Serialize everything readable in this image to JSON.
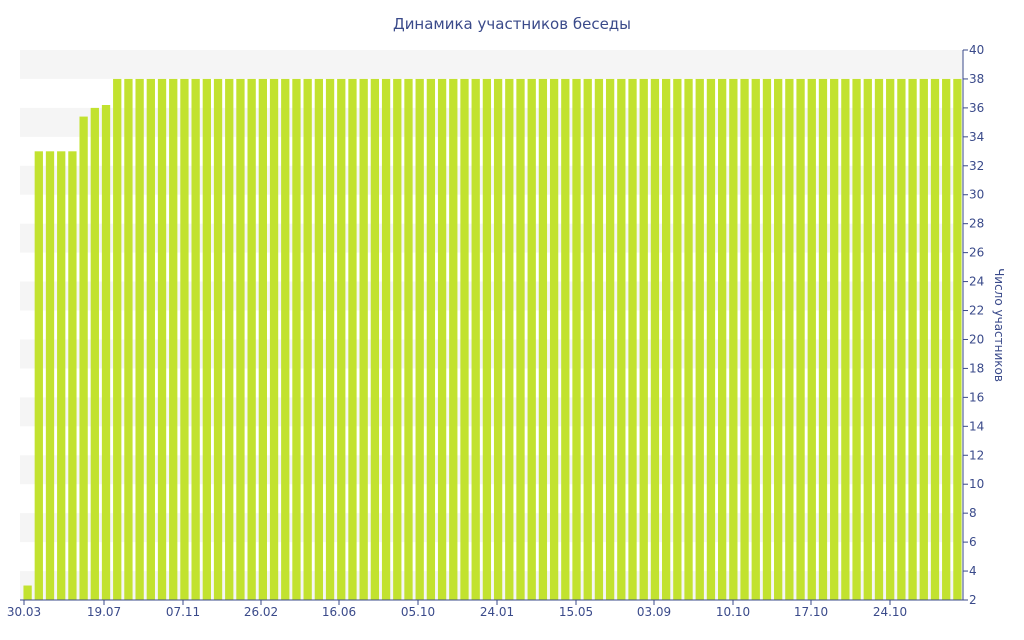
{
  "chart_data": {
    "type": "bar",
    "title": "Динамика участников беседы",
    "xlabel": "",
    "ylabel": "Число участников",
    "ylim": [
      2,
      40
    ],
    "yticks": [
      2,
      4,
      6,
      8,
      10,
      12,
      14,
      16,
      18,
      20,
      22,
      24,
      26,
      28,
      30,
      32,
      34,
      36,
      38,
      40
    ],
    "y_axis_side": "right",
    "grid": "alternating horizontal bands",
    "x_tick_labels": [
      "30.03",
      "19.07",
      "07.11",
      "26.02",
      "16.06",
      "05.10",
      "24.01",
      "15.05",
      "03.09",
      "10.10",
      "17.10",
      "24.10"
    ],
    "bar_color": "#c2e22f",
    "values": [
      3,
      33,
      33,
      33,
      33,
      35.4,
      36,
      36.2,
      38,
      38,
      38,
      38,
      38,
      38,
      38,
      38,
      38,
      38,
      38,
      38,
      38,
      38,
      38,
      38,
      38,
      38,
      38,
      38,
      38,
      38,
      38,
      38,
      38,
      38,
      38,
      38,
      38,
      38,
      38,
      38,
      38,
      38,
      38,
      38,
      38,
      38,
      38,
      38,
      38,
      38,
      38,
      38,
      38,
      38,
      38,
      38,
      38,
      38,
      38,
      38,
      38,
      38,
      38,
      38,
      38,
      38,
      38,
      38,
      38,
      38,
      38,
      38,
      38,
      38,
      38,
      38,
      38,
      38,
      38,
      38,
      38,
      38,
      38,
      38
    ]
  }
}
